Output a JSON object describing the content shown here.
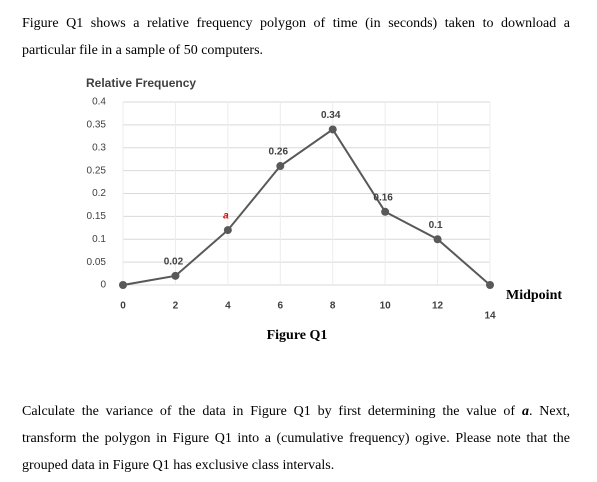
{
  "document": {
    "intro": "Figure Q1 shows a relative frequency polygon of time (in seconds) taken to download a particular file in a sample of 50 computers.",
    "caption": "Figure Q1",
    "question": [
      "Calculate the variance of the data in Figure Q1 by first determining the value of ",
      "a",
      ". Next, transform the polygon in Figure Q1 into a (cumulative frequency) ogive. Please note that the grouped data in Figure Q1 has exclusive class intervals."
    ]
  },
  "chart_data": {
    "type": "line",
    "y_label": "Relative Frequency",
    "x_label": "Midpoint",
    "x": [
      0,
      2,
      4,
      6,
      8,
      10,
      12,
      14
    ],
    "values": [
      0,
      0.02,
      0.12,
      0.26,
      0.34,
      0.16,
      0.1,
      0
    ],
    "value_labels": [
      null,
      "0.02",
      "a",
      "0.26",
      "0.34",
      "0.16",
      "0.1",
      null
    ],
    "color": "#595959",
    "xlim": [
      0,
      14
    ],
    "ylim": [
      0,
      0.4
    ],
    "xticks": [
      0,
      2,
      4,
      6,
      8,
      10,
      12,
      14
    ],
    "yticks": [
      0,
      0.05,
      0.1,
      0.15,
      0.2,
      0.25,
      0.3,
      0.35,
      0.4
    ],
    "grid": true
  }
}
